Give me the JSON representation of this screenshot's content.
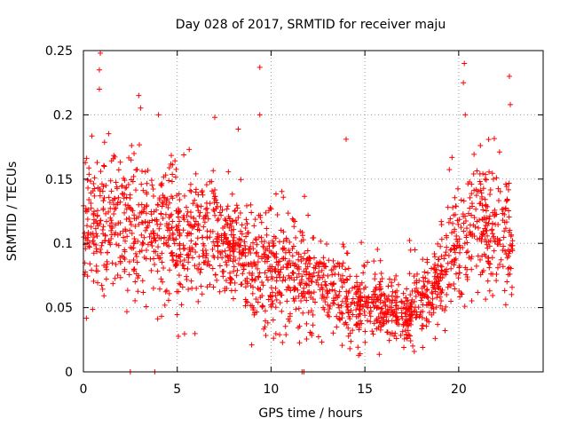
{
  "chart_data": {
    "type": "scatter",
    "title": "Day 028 of 2017, SRMTID for receiver maju",
    "xlabel": "GPS time / hours",
    "ylabel": "SRMTID / TECUs",
    "xlim": [
      0,
      24.5
    ],
    "ylim": [
      0,
      0.25
    ],
    "x_ticks": [
      0,
      5,
      10,
      15,
      20
    ],
    "y_ticks": [
      0,
      0.05,
      0.1,
      0.15,
      0.2,
      0.25
    ],
    "x_tick_labels": [
      "0",
      "5",
      "10",
      "15",
      "20"
    ],
    "y_tick_labels": [
      "0",
      "0.05",
      "0.1",
      "0.15",
      "0.2",
      "0.25"
    ],
    "grid": true,
    "marker": "+",
    "color": "#ff0000",
    "series": [
      {
        "name": "SRMTID",
        "x_range": [
          0,
          22.9
        ],
        "approx_points": 2000,
        "trend": [
          {
            "x": 0.0,
            "median": 0.11,
            "spread": 0.035
          },
          {
            "x": 2.0,
            "median": 0.115,
            "spread": 0.04
          },
          {
            "x": 4.0,
            "median": 0.11,
            "spread": 0.035
          },
          {
            "x": 6.0,
            "median": 0.1,
            "spread": 0.035
          },
          {
            "x": 8.0,
            "median": 0.095,
            "spread": 0.03
          },
          {
            "x": 10.0,
            "median": 0.085,
            "spread": 0.03
          },
          {
            "x": 12.0,
            "median": 0.07,
            "spread": 0.025
          },
          {
            "x": 14.0,
            "median": 0.055,
            "spread": 0.02
          },
          {
            "x": 16.0,
            "median": 0.05,
            "spread": 0.018
          },
          {
            "x": 17.5,
            "median": 0.045,
            "spread": 0.015
          },
          {
            "x": 19.0,
            "median": 0.07,
            "spread": 0.022
          },
          {
            "x": 20.5,
            "median": 0.11,
            "spread": 0.035
          },
          {
            "x": 22.0,
            "median": 0.11,
            "spread": 0.035
          },
          {
            "x": 22.9,
            "median": 0.09,
            "spread": 0.03
          }
        ],
        "highlights": [
          {
            "x": 0.9,
            "y": 0.248
          },
          {
            "x": 0.85,
            "y": 0.235
          },
          {
            "x": 0.85,
            "y": 0.22
          },
          {
            "x": 2.95,
            "y": 0.215
          },
          {
            "x": 4.0,
            "y": 0.2
          },
          {
            "x": 7.0,
            "y": 0.198
          },
          {
            "x": 9.4,
            "y": 0.237
          },
          {
            "x": 9.4,
            "y": 0.2
          },
          {
            "x": 14.0,
            "y": 0.181
          },
          {
            "x": 20.3,
            "y": 0.24
          },
          {
            "x": 20.25,
            "y": 0.225
          },
          {
            "x": 20.35,
            "y": 0.2
          },
          {
            "x": 22.7,
            "y": 0.23
          },
          {
            "x": 22.75,
            "y": 0.208
          },
          {
            "x": 2.5,
            "y": 0.0
          },
          {
            "x": 3.8,
            "y": 0.0
          },
          {
            "x": 11.65,
            "y": 0.0
          },
          {
            "x": 11.75,
            "y": 0.0
          },
          {
            "x": 14.2,
            "y": 0.018
          }
        ]
      }
    ]
  }
}
